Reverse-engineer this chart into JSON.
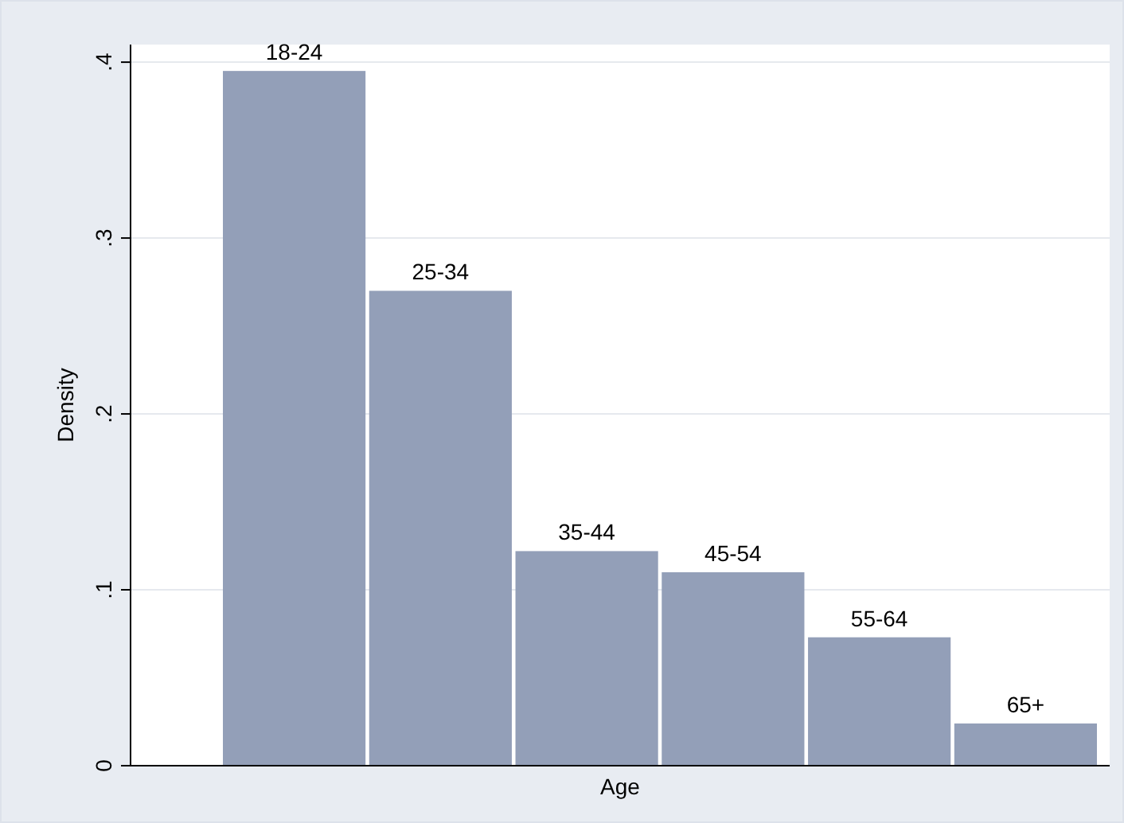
{
  "chart_data": {
    "type": "bar",
    "xlabel": "Age",
    "ylabel": "Density",
    "categories": [
      "18-24",
      "25-34",
      "35-44",
      "45-54",
      "55-64",
      "65+"
    ],
    "values": [
      0.395,
      0.27,
      0.122,
      0.11,
      0.073,
      0.024
    ],
    "color": "#939fb8",
    "ylim": [
      0,
      0.41
    ],
    "yticks": [
      0,
      {
        "value": 0.1,
        "label": ".1"
      },
      {
        "value": 0.2,
        "label": ".2"
      },
      {
        "value": 0.3,
        "label": ".3"
      },
      {
        "value": 0.4,
        "label": ".4"
      }
    ],
    "grid": "y"
  }
}
